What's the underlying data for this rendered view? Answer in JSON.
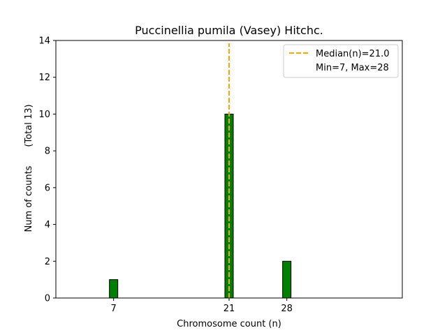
{
  "chart_data": {
    "type": "bar",
    "title": "Puccinellia pumila (Vasey) Hitchc.",
    "xlabel": "Chromosome count (n)",
    "ylabel": "Num of counts",
    "ylabel_note": "(Total 13)",
    "x_ticks": [
      7,
      21,
      28
    ],
    "y_ticks": [
      0,
      2,
      4,
      6,
      8,
      10,
      12,
      14
    ],
    "xlim": [
      0,
      42
    ],
    "ylim": [
      0,
      14
    ],
    "bars": [
      {
        "x": 7,
        "value": 1
      },
      {
        "x": 21,
        "value": 10
      },
      {
        "x": 28,
        "value": 2
      }
    ],
    "baseline_x_range": [
      7,
      31.5
    ],
    "median_line": {
      "x": 21.0,
      "label": "Median(n)=21.0",
      "color": "#ffa500"
    },
    "range_label": "Min=7, Max=28",
    "legend_position": "top-right",
    "bar_color": "#008000",
    "grid": false
  }
}
